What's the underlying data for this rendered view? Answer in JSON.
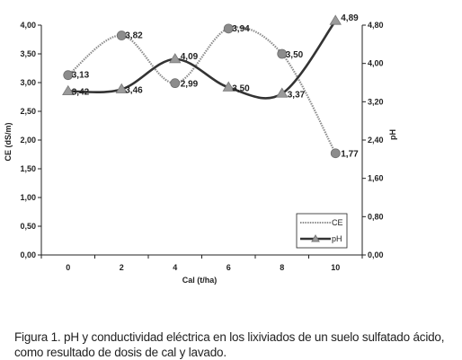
{
  "chart_data": {
    "type": "line",
    "x": [
      0,
      2,
      4,
      6,
      8,
      10
    ],
    "xlabel": "Cal (t/ha)",
    "xlim": [
      -1,
      11
    ],
    "series": [
      {
        "name": "CE",
        "axis": "left",
        "values": [
          3.13,
          3.82,
          2.99,
          3.94,
          3.5,
          1.77
        ],
        "labels": [
          "3,13",
          "3,82",
          "2,99",
          "3,94",
          "3,50",
          "1,77"
        ],
        "color": "#8c8c8c",
        "marker": "circle",
        "line_style": "dotted"
      },
      {
        "name": "pH",
        "axis": "right",
        "values": [
          3.42,
          3.46,
          4.09,
          3.5,
          3.37,
          4.89
        ],
        "labels": [
          "3,42",
          "3,46",
          "4,09",
          "3,50",
          "3,37",
          "4,89"
        ],
        "color": "#333333",
        "marker": "triangle",
        "line_style": "solid"
      }
    ],
    "y_left": {
      "label": "CE (dS/m)",
      "ylim": [
        0,
        4
      ],
      "ticks": [
        0,
        0.5,
        1,
        1.5,
        2,
        2.5,
        3,
        3.5,
        4
      ],
      "tick_labels": [
        "0,00",
        "0,50",
        "1,00",
        "1,50",
        "2,00",
        "2,50",
        "3,00",
        "3,50",
        "4,00"
      ]
    },
    "y_right": {
      "label": "pH",
      "ylim": [
        0,
        4.8
      ],
      "ticks": [
        0,
        0.8,
        1.6,
        2.4,
        3.2,
        4.0,
        4.8
      ],
      "tick_labels": [
        "0,00",
        "0,80",
        "1,60",
        "2,40",
        "3,20",
        "4,00",
        "4,80"
      ]
    },
    "x_tick_labels": [
      "0",
      "2",
      "4",
      "6",
      "8",
      "10"
    ],
    "grid": false,
    "legend_position": "bottom-right inside plot"
  },
  "caption": "Figura 1. pH y conductividad eléctrica en los lixiviados de un suelo sulfatado ácido, como resultado de dosis de cal y lavado.",
  "colors": {
    "ce": "#8c8c8c",
    "ph": "#333333",
    "axis": "#222222"
  }
}
